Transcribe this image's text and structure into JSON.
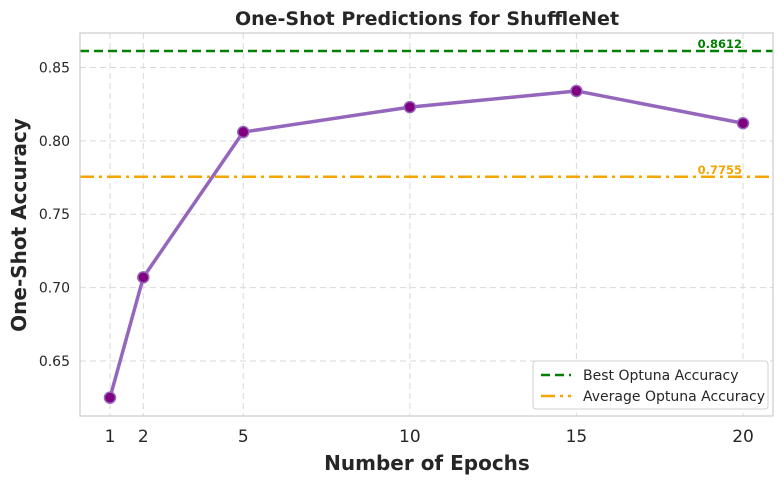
{
  "chart_data": {
    "type": "line",
    "title": "One-Shot Predictions for ShuffleNet",
    "xlabel": "Number of Epochs",
    "ylabel": "One-Shot Accuracy",
    "x_ticks": [
      1,
      2,
      5,
      10,
      15,
      20
    ],
    "y_ticks": [
      "0.65",
      "0.70",
      "0.75",
      "0.80",
      "0.85"
    ],
    "xlim": [
      0.1,
      20.9
    ],
    "ylim": [
      0.6125,
      0.8735
    ],
    "grid": true,
    "series": [
      {
        "x": [
          1,
          2,
          5,
          10,
          15,
          20
        ],
        "y": [
          0.625,
          0.707,
          0.806,
          0.823,
          0.834,
          0.812
        ],
        "color": "#9467bd",
        "marker_color": "#800080"
      }
    ],
    "reference_lines": [
      {
        "name": "Best Optuna Accuracy",
        "value": 0.8612,
        "label": "0.8612",
        "color": "#008000",
        "style": "dashed"
      },
      {
        "name": "Average Optuna Accuracy",
        "value": 0.7755,
        "label": "0.7755",
        "color": "#f5a500",
        "style": "dashdot"
      }
    ],
    "legend_position": "lower-right"
  }
}
